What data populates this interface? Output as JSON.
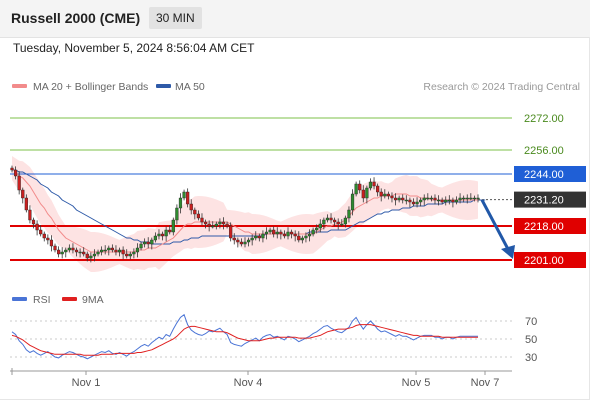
{
  "header": {
    "title": "Russell 2000 (CME)",
    "timeframe": "30 MIN"
  },
  "datetime": "Tuesday, November 5, 2024 8:56:04 AM CET",
  "legend": {
    "bollinger": "MA 20 + Bollinger Bands",
    "ma50": "MA 50",
    "rsi": "RSI",
    "ma9": "9MA"
  },
  "credit": "Research © 2024 Trading Central",
  "colors": {
    "bollinger": "#f28b8b",
    "band_fill": "#fde3e3",
    "ma50": "#2e5aa8",
    "rsi": "#4a74d6",
    "ma9": "#e02020",
    "green_level": "#7cc24a",
    "blue_level": "#1f5fd6",
    "red_level": "#e00000",
    "current_price": "#333333",
    "arrow": "#2158a8"
  },
  "chart_data": [
    {
      "type": "candlestick",
      "name": "price",
      "ylim": [
        2191,
        2282
      ],
      "x_ticks": [
        "Nov 1",
        "Nov 4",
        "Nov 5",
        "Nov 7"
      ],
      "levels": [
        {
          "value": 2272.0,
          "label": "2272.00",
          "kind": "resistance"
        },
        {
          "value": 2256.0,
          "label": "2256.00",
          "kind": "resistance"
        },
        {
          "value": 2244.0,
          "label": "2244.00",
          "kind": "pivot"
        },
        {
          "value": 2218.0,
          "label": "2218.00",
          "kind": "support"
        },
        {
          "value": 2201.0,
          "label": "2201.00",
          "kind": "support"
        }
      ],
      "current_price": {
        "value": 2231.2,
        "label": "2231.20"
      },
      "close": [
        2246,
        2243,
        2236,
        2232,
        2226,
        2221,
        2219,
        2216,
        2214,
        2212,
        2211,
        2208,
        2206,
        2204,
        2205,
        2206,
        2207,
        2206,
        2205,
        2205,
        2204,
        2202,
        2203,
        2204,
        2205,
        2206,
        2206,
        2207,
        2206,
        2205,
        2206,
        2204,
        2203,
        2204,
        2205,
        2207,
        2209,
        2210,
        2209,
        2211,
        2213,
        2214,
        2213,
        2216,
        2215,
        2221,
        2227,
        2232,
        2235,
        2229,
        2226,
        2224,
        2222,
        2220,
        2219,
        2218,
        2218,
        2219,
        2220,
        2219,
        2218,
        2212,
        2211,
        2210,
        2209,
        2210,
        2211,
        2212,
        2213,
        2212,
        2214,
        2215,
        2216,
        2214,
        2215,
        2214,
        2213,
        2215,
        2214,
        2213,
        2211,
        2212,
        2213,
        2214,
        2216,
        2217,
        2219,
        2221,
        2222,
        2221,
        2220,
        2219,
        2219,
        2222,
        2226,
        2234,
        2239,
        2236,
        2232,
        2237,
        2240,
        2238,
        2235,
        2233,
        2234,
        2233,
        2232,
        2231,
        2232,
        2231,
        2231,
        2230,
        2229,
        2230,
        2231,
        2232,
        2232,
        2232,
        2231,
        2231,
        2230,
        2231,
        2231,
        2230,
        2231,
        2232,
        2232,
        2232,
        2232,
        2232,
        2232
      ],
      "ma20": [
        2247,
        2245,
        2243,
        2242,
        2240,
        2238,
        2235,
        2232,
        2229,
        2227,
        2224,
        2222,
        2219,
        2216,
        2214,
        2212,
        2211,
        2210,
        2209,
        2208,
        2207,
        2206,
        2205,
        2205,
        2205,
        2205,
        2205,
        2205,
        2205,
        2205,
        2205,
        2205,
        2205,
        2205,
        2205,
        2206,
        2206,
        2206,
        2207,
        2207,
        2207,
        2208,
        2209,
        2210,
        2211,
        2212,
        2214,
        2216,
        2218,
        2219,
        2219,
        2220,
        2220,
        2220,
        2220,
        2220,
        2220,
        2220,
        2220,
        2220,
        2220,
        2219,
        2218,
        2217,
        2216,
        2215,
        2215,
        2214,
        2214,
        2214,
        2214,
        2214,
        2214,
        2214,
        2214,
        2214,
        2214,
        2214,
        2214,
        2214,
        2214,
        2214,
        2214,
        2214,
        2214,
        2215,
        2216,
        2217,
        2218,
        2218,
        2219,
        2219,
        2220,
        2221,
        2223,
        2225,
        2227,
        2228,
        2229,
        2230,
        2231,
        2232,
        2232,
        2233,
        2233,
        2233,
        2233,
        2234,
        2234,
        2234,
        2234,
        2233,
        2233,
        2233,
        2232,
        2232,
        2232,
        2231,
        2231,
        2231,
        2231,
        2231,
        2231,
        2231,
        2231,
        2231,
        2231,
        2231,
        2231,
        2231,
        2231
      ],
      "ma50": [
        2246,
        2246,
        2245,
        2245,
        2244,
        2243,
        2242,
        2241,
        2239,
        2238,
        2237,
        2235,
        2234,
        2233,
        2231,
        2230,
        2229,
        2228,
        2226,
        2225,
        2224,
        2223,
        2222,
        2221,
        2220,
        2219,
        2218,
        2217,
        2216,
        2215,
        2214,
        2213,
        2212,
        2212,
        2211,
        2211,
        2210,
        2210,
        2210,
        2209,
        2209,
        2209,
        2209,
        2209,
        2209,
        2210,
        2210,
        2210,
        2211,
        2211,
        2212,
        2212,
        2212,
        2213,
        2213,
        2213,
        2213,
        2213,
        2213,
        2213,
        2213,
        2213,
        2213,
        2213,
        2213,
        2213,
        2213,
        2213,
        2213,
        2213,
        2213,
        2214,
        2214,
        2214,
        2214,
        2214,
        2214,
        2214,
        2214,
        2214,
        2214,
        2214,
        2214,
        2215,
        2215,
        2215,
        2215,
        2215,
        2215,
        2216,
        2216,
        2216,
        2216,
        2216,
        2217,
        2218,
        2219,
        2220,
        2220,
        2221,
        2222,
        2223,
        2224,
        2224,
        2225,
        2225,
        2226,
        2226,
        2226,
        2227,
        2227,
        2227,
        2228,
        2228,
        2228,
        2228,
        2229,
        2229,
        2229,
        2229,
        2229,
        2230,
        2230,
        2230,
        2230,
        2230,
        2230,
        2230,
        2230,
        2231,
        2231,
        2231,
        2231
      ]
    },
    {
      "type": "line",
      "name": "rsi",
      "ylim": [
        20,
        80
      ],
      "y_ticks": [
        30,
        50,
        70
      ],
      "series": [
        {
          "name": "RSI",
          "values": [
            58,
            55,
            48,
            44,
            38,
            35,
            37,
            34,
            32,
            34,
            36,
            33,
            30,
            29,
            32,
            34,
            36,
            35,
            33,
            31,
            30,
            28,
            30,
            32,
            34,
            36,
            35,
            37,
            34,
            33,
            35,
            33,
            31,
            34,
            36,
            39,
            42,
            44,
            42,
            46,
            49,
            52,
            50,
            55,
            53,
            61,
            68,
            74,
            77,
            66,
            60,
            57,
            55,
            54,
            56,
            59,
            58,
            60,
            62,
            58,
            55,
            46,
            44,
            43,
            42,
            45,
            47,
            49,
            51,
            48,
            52,
            54,
            55,
            52,
            53,
            51,
            49,
            53,
            52,
            50,
            47,
            49,
            51,
            53,
            56,
            58,
            61,
            64,
            65,
            62,
            60,
            58,
            57,
            60,
            63,
            70,
            74,
            67,
            61,
            66,
            70,
            66,
            61,
            58,
            59,
            57,
            55,
            53,
            55,
            53,
            53,
            51,
            49,
            51,
            53,
            54,
            54,
            54,
            52,
            52,
            50,
            52,
            52,
            50,
            52,
            53,
            53,
            53,
            53,
            53,
            53
          ]
        },
        {
          "name": "9MA",
          "values": [
            54,
            53,
            51,
            49,
            46,
            43,
            41,
            39,
            37,
            36,
            35,
            34,
            33,
            33,
            33,
            33,
            33,
            33,
            33,
            33,
            32,
            32,
            32,
            32,
            32,
            33,
            33,
            33,
            33,
            34,
            34,
            34,
            34,
            34,
            34,
            35,
            35,
            36,
            37,
            38,
            40,
            42,
            44,
            46,
            48,
            50,
            53,
            57,
            61,
            63,
            64,
            64,
            63,
            62,
            61,
            60,
            59,
            58,
            58,
            58,
            57,
            55,
            53,
            51,
            50,
            49,
            48,
            48,
            48,
            48,
            49,
            50,
            51,
            51,
            52,
            52,
            52,
            52,
            52,
            52,
            51,
            51,
            51,
            51,
            52,
            53,
            54,
            56,
            58,
            59,
            60,
            61,
            61,
            61,
            62,
            63,
            65,
            66,
            66,
            66,
            66,
            65,
            64,
            63,
            62,
            61,
            60,
            59,
            58,
            57,
            56,
            55,
            54,
            54,
            53,
            53,
            53,
            53,
            53,
            53,
            52,
            52,
            52,
            52,
            52,
            52,
            52,
            52,
            52,
            52,
            52
          ]
        }
      ]
    }
  ]
}
